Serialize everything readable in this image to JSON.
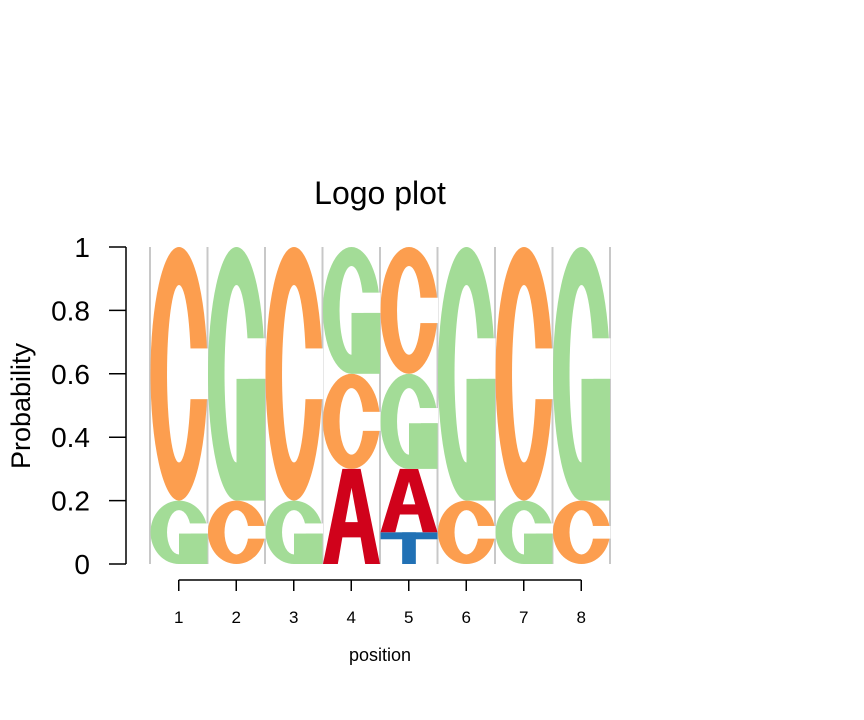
{
  "chart_data": {
    "type": "sequence-logo",
    "title": "Logo plot",
    "xlabel": "position",
    "ylabel": "Probability",
    "ylim": [
      0,
      1
    ],
    "y_ticks": [
      "0",
      "0.2",
      "0.4",
      "0.6",
      "0.8",
      "1"
    ],
    "x_ticks": [
      "1",
      "2",
      "3",
      "4",
      "5",
      "6",
      "7",
      "8"
    ],
    "colors": {
      "A": "#d0021b",
      "C": "#fc9e4f",
      "G": "#a3dc97",
      "T": "#2171b5"
    },
    "positions": [
      {
        "pos": "1",
        "stack": [
          {
            "letter": "G",
            "p": 0.2
          },
          {
            "letter": "C",
            "p": 0.8
          }
        ]
      },
      {
        "pos": "2",
        "stack": [
          {
            "letter": "C",
            "p": 0.2
          },
          {
            "letter": "G",
            "p": 0.8
          }
        ]
      },
      {
        "pos": "3",
        "stack": [
          {
            "letter": "G",
            "p": 0.2
          },
          {
            "letter": "C",
            "p": 0.8
          }
        ]
      },
      {
        "pos": "4",
        "stack": [
          {
            "letter": "A",
            "p": 0.3
          },
          {
            "letter": "C",
            "p": 0.3
          },
          {
            "letter": "G",
            "p": 0.4
          }
        ]
      },
      {
        "pos": "5",
        "stack": [
          {
            "letter": "T",
            "p": 0.1
          },
          {
            "letter": "A",
            "p": 0.2
          },
          {
            "letter": "G",
            "p": 0.3
          },
          {
            "letter": "C",
            "p": 0.4
          }
        ]
      },
      {
        "pos": "6",
        "stack": [
          {
            "letter": "C",
            "p": 0.2
          },
          {
            "letter": "G",
            "p": 0.8
          }
        ]
      },
      {
        "pos": "7",
        "stack": [
          {
            "letter": "G",
            "p": 0.2
          },
          {
            "letter": "C",
            "p": 0.8
          }
        ]
      },
      {
        "pos": "8",
        "stack": [
          {
            "letter": "C",
            "p": 0.2
          },
          {
            "letter": "G",
            "p": 0.8
          }
        ]
      }
    ]
  }
}
